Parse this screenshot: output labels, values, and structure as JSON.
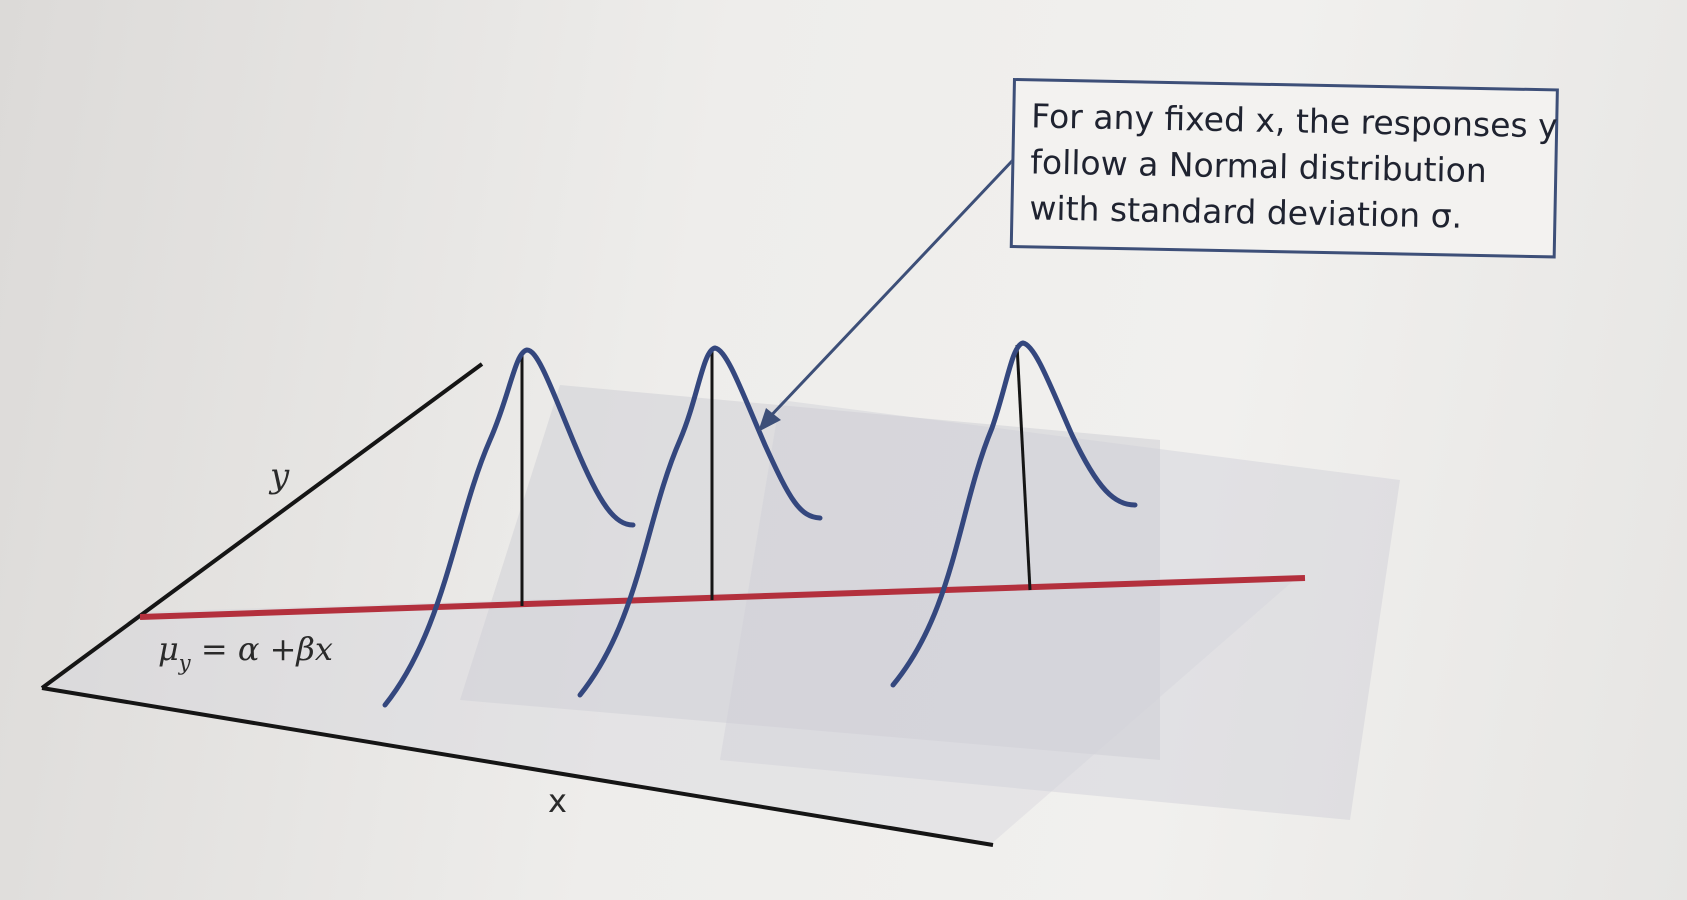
{
  "callout": {
    "lines": [
      "For any fixed x, the responses y",
      "follow a Normal distribution",
      "with standard deviation σ."
    ]
  },
  "axes": {
    "y_label": "y",
    "x_label": "x"
  },
  "regression_line": {
    "equation_mu": "μ",
    "equation_sub": "y",
    "equation_rest": " = α +βx",
    "color": "#b3303d"
  },
  "colors": {
    "curve": "#34477e",
    "axis": "#151515",
    "plane_shade": "#cfcfd6"
  },
  "distributions": {
    "count": 3,
    "shape": "normal"
  }
}
